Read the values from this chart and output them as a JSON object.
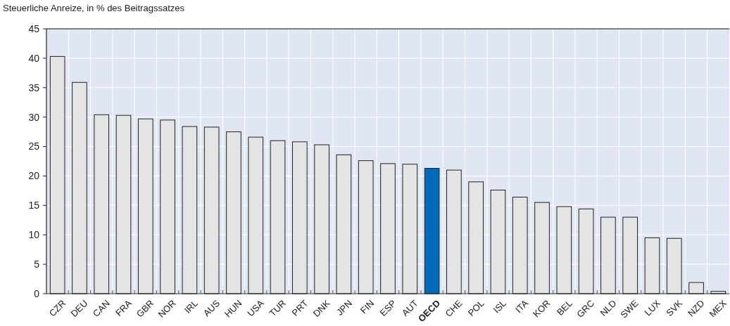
{
  "chart_data": {
    "type": "bar",
    "title": "Steuerliche Anreize, in % des Beitragssatzes",
    "categories": [
      "CZR",
      "DEU",
      "CAN",
      "FRA",
      "GBR",
      "NOR",
      "IRL",
      "AUS",
      "HUN",
      "USA",
      "TUR",
      "PRT",
      "DNK",
      "JPN",
      "FIN",
      "ESP",
      "AUT",
      "OECD",
      "CHE",
      "POL",
      "ISL",
      "ITA",
      "KOR",
      "BEL",
      "GRC",
      "NLD",
      "SWE",
      "LUX",
      "SVK",
      "NZD",
      "MEX"
    ],
    "values": [
      40.3,
      35.9,
      30.4,
      30.3,
      29.7,
      29.5,
      28.4,
      28.3,
      27.5,
      26.6,
      26.0,
      25.8,
      25.3,
      23.6,
      22.6,
      22.1,
      22.0,
      21.3,
      21.0,
      19.0,
      17.6,
      16.4,
      15.5,
      14.8,
      14.4,
      13.0,
      13.0,
      9.5,
      9.4,
      1.9,
      0.4
    ],
    "colors": [
      "#e4e4e4",
      "#e4e4e4",
      "#e4e4e4",
      "#e4e4e4",
      "#e4e4e4",
      "#e4e4e4",
      "#e4e4e4",
      "#e4e4e4",
      "#e4e4e4",
      "#e4e4e4",
      "#e4e4e4",
      "#e4e4e4",
      "#e4e4e4",
      "#e4e4e4",
      "#e4e4e4",
      "#e4e4e4",
      "#e4e4e4",
      "#006bb6",
      "#e4e4e4",
      "#e4e4e4",
      "#e4e4e4",
      "#e4e4e4",
      "#e4e4e4",
      "#e4e4e4",
      "#e4e4e4",
      "#e4e4e4",
      "#e4e4e4",
      "#e4e4e4",
      "#e4e4e4",
      "#e4e4e4",
      "#e4e4e4"
    ],
    "ylim": [
      0,
      45
    ],
    "yticks": [
      0,
      5,
      10,
      15,
      20,
      25,
      30,
      35,
      40,
      45
    ],
    "grid": true
  }
}
